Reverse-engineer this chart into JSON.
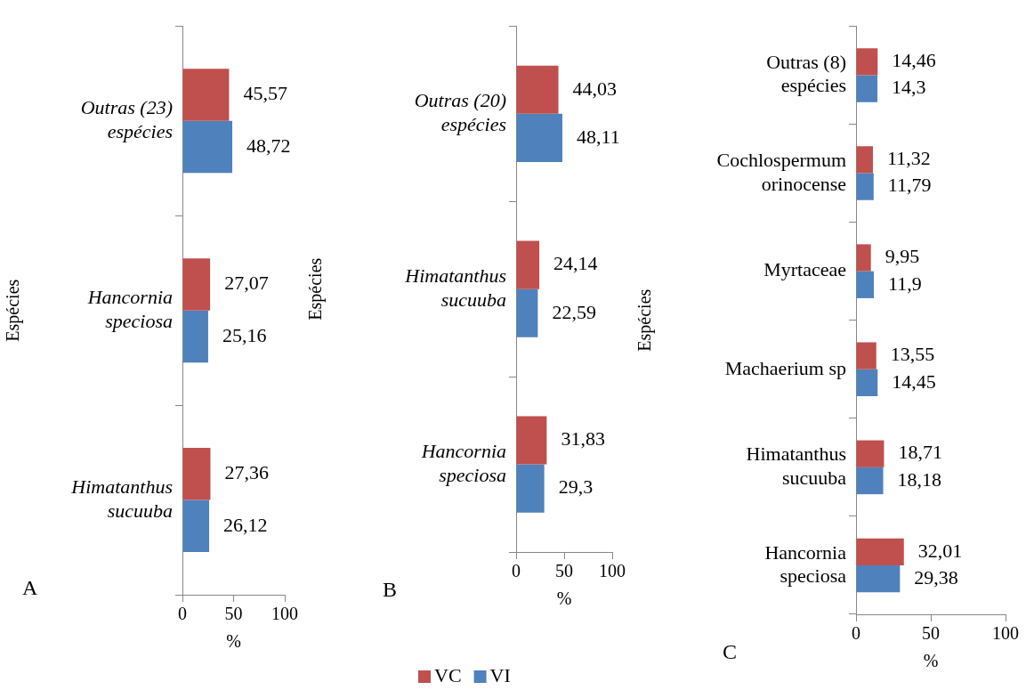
{
  "chart_data": [
    {
      "type": "bar",
      "orientation": "horizontal",
      "categories": [
        "Outras (23) espécies",
        "Hancornia speciosa",
        "Himatanthus sucuuba"
      ],
      "xlim": [
        0,
        100
      ],
      "xticks": [
        0,
        50,
        100
      ],
      "xlabel": "%",
      "ylabel": "Espécies",
      "annotations": [
        "A"
      ],
      "series": [
        {
          "color": "#c0504d",
          "values": [
            45.57,
            27.07,
            27.36
          ],
          "value_labels": [
            "45,57",
            "27,07",
            "27,36"
          ]
        },
        {
          "color": "#4f81bd",
          "values": [
            48.72,
            25.16,
            26.12
          ],
          "value_labels": [
            "48,72",
            "25,16",
            "26,12"
          ]
        }
      ]
    },
    {
      "type": "bar",
      "orientation": "horizontal",
      "categories": [
        "Outras (20) espécies",
        "Himatanthus sucuuba",
        "Hancornia speciosa"
      ],
      "xlim": [
        0,
        100
      ],
      "xticks": [
        0,
        50,
        100
      ],
      "xlabel": "%",
      "ylabel": "Espécies",
      "annotations": [
        "B"
      ],
      "legend": "bottom",
      "series": [
        {
          "name": "VC",
          "color": "#c0504d",
          "values": [
            44.03,
            24.14,
            31.83
          ],
          "value_labels": [
            "44,03",
            "24,14",
            "31,83"
          ]
        },
        {
          "name": "VI",
          "color": "#4f81bd",
          "values": [
            48.11,
            22.59,
            29.3
          ],
          "value_labels": [
            "48,11",
            "22,59",
            "29,3"
          ]
        }
      ]
    },
    {
      "type": "bar",
      "orientation": "horizontal",
      "categories": [
        "Outras (8) espécies",
        "Cochlospermum orinocense",
        "Myrtaceae",
        "Machaerium sp",
        "Himatanthus sucuuba",
        "Hancornia speciosa"
      ],
      "xlim": [
        0,
        100
      ],
      "xticks": [
        0,
        50,
        100
      ],
      "xlabel": "%",
      "ylabel": "Espécies",
      "annotations": [
        "C"
      ],
      "series": [
        {
          "color": "#c0504d",
          "values": [
            14.46,
            11.32,
            9.95,
            13.55,
            18.71,
            32.01
          ],
          "value_labels": [
            "14,46",
            "11,32",
            "9,95",
            "13,55",
            "18,71",
            "32,01"
          ]
        },
        {
          "color": "#4f81bd",
          "values": [
            14.3,
            11.79,
            11.9,
            14.45,
            18.18,
            29.38
          ],
          "value_labels": [
            "14,3",
            "11,79",
            "11,9",
            "14,45",
            "18,18",
            "29,38"
          ]
        }
      ]
    }
  ]
}
